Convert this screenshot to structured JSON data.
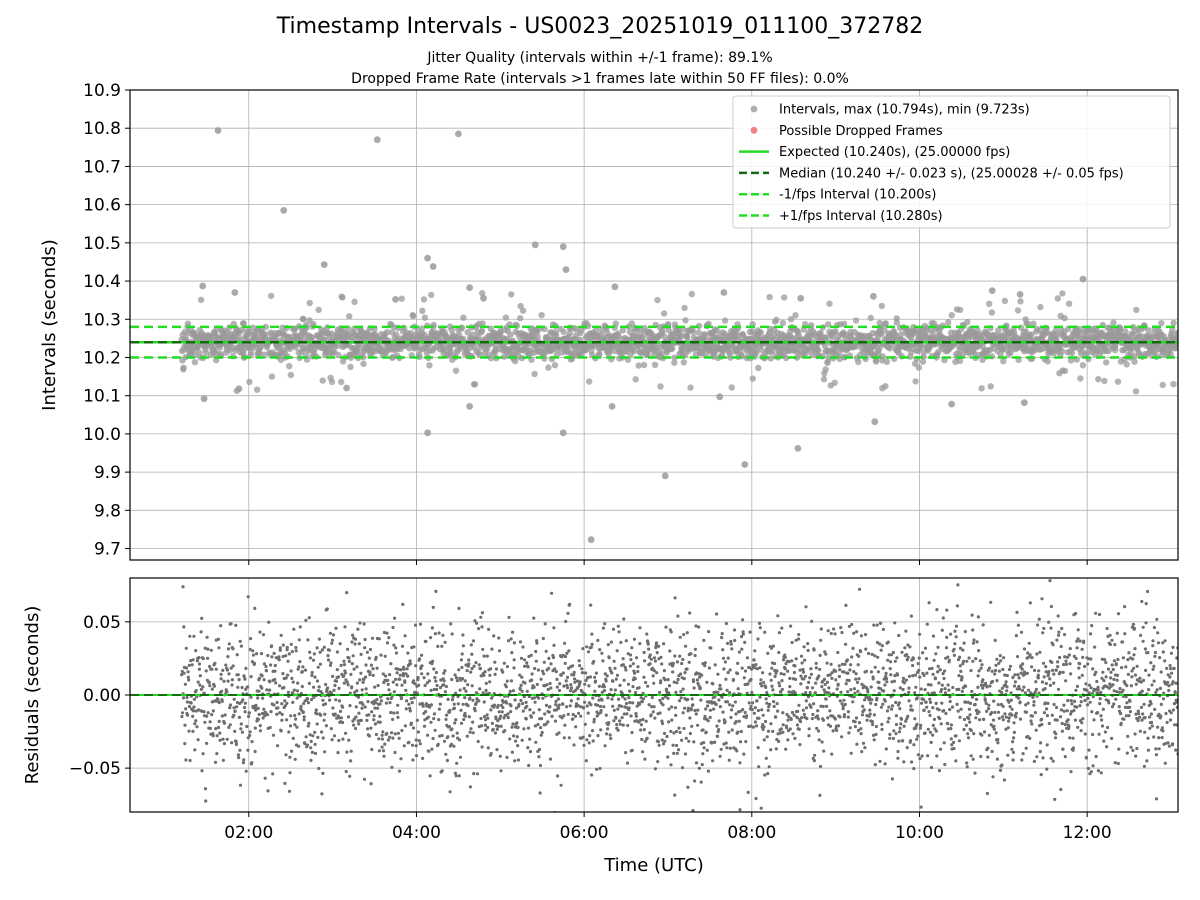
{
  "chart_data": [
    {
      "type": "scatter",
      "title": "Timestamp Intervals - US0023_20251019_011100_372782",
      "subtitle_lines": [
        "Jitter Quality (intervals within +/-1 frame): 89.1%",
        "Dropped Frame Rate (intervals >1 frames late within 50 FF files): 0.0%"
      ],
      "ylabel": "Intervals (seconds)",
      "xlim": [
        "00:35",
        "13:05"
      ],
      "ylim": [
        9.67,
        10.9
      ],
      "yticks": [
        "10.9",
        "10.8",
        "10.7",
        "10.6",
        "10.5",
        "10.4",
        "10.3",
        "10.2",
        "10.1",
        "10.0",
        "9.9",
        "9.8",
        "9.7"
      ],
      "grid": true,
      "legend_position": "top-right",
      "legend": [
        {
          "label": "Intervals, max (10.794s), min (9.723s)",
          "kind": "marker",
          "color": "#a0a0a0"
        },
        {
          "label": "Possible Dropped Frames",
          "kind": "marker",
          "color": "#f06a6a"
        },
        {
          "label": "Expected (10.240s), (25.00000 fps)",
          "kind": "line",
          "color": "#22dd22"
        },
        {
          "label": "Median (10.240 +/- 0.023 s), (25.00028 +/- 0.05 fps)",
          "kind": "dash",
          "color": "#156b15"
        },
        {
          "label": "-1/fps Interval (10.200s)",
          "kind": "dash",
          "color": "#22dd22"
        },
        {
          "label": "+1/fps Interval (10.280s)",
          "kind": "dash",
          "color": "#22dd22"
        }
      ],
      "horizontal_lines": {
        "expected": 10.24,
        "median": 10.24,
        "lower": 10.2,
        "upper": 10.28
      },
      "time_range": [
        "01:12",
        "13:05"
      ],
      "core_spread_sd": 0.023,
      "outliers": [
        {
          "t": "01:38",
          "y": 10.794
        },
        {
          "t": "02:25",
          "y": 10.585
        },
        {
          "t": "03:32",
          "y": 10.77
        },
        {
          "t": "04:30",
          "y": 10.785
        },
        {
          "t": "02:54",
          "y": 10.443
        },
        {
          "t": "04:08",
          "y": 10.46
        },
        {
          "t": "04:12",
          "y": 10.438
        },
        {
          "t": "05:25",
          "y": 10.495
        },
        {
          "t": "05:45",
          "y": 10.49
        },
        {
          "t": "05:47",
          "y": 10.43
        },
        {
          "t": "11:57",
          "y": 10.405
        },
        {
          "t": "01:27",
          "y": 10.387
        },
        {
          "t": "01:50",
          "y": 10.37
        },
        {
          "t": "04:38",
          "y": 10.383
        },
        {
          "t": "06:22",
          "y": 10.385
        },
        {
          "t": "07:40",
          "y": 10.37
        },
        {
          "t": "10:52",
          "y": 10.375
        },
        {
          "t": "11:12",
          "y": 10.365
        },
        {
          "t": "03:45",
          "y": 10.352
        },
        {
          "t": "04:48",
          "y": 10.355
        },
        {
          "t": "08:35",
          "y": 10.355
        },
        {
          "t": "09:27",
          "y": 10.36
        },
        {
          "t": "01:28",
          "y": 10.092
        },
        {
          "t": "01:53",
          "y": 10.118
        },
        {
          "t": "03:10",
          "y": 10.12
        },
        {
          "t": "04:38",
          "y": 10.072
        },
        {
          "t": "06:20",
          "y": 10.072
        },
        {
          "t": "07:37",
          "y": 10.097
        },
        {
          "t": "10:23",
          "y": 10.078
        },
        {
          "t": "11:15",
          "y": 10.082
        },
        {
          "t": "04:08",
          "y": 10.003
        },
        {
          "t": "05:45",
          "y": 10.003
        },
        {
          "t": "09:28",
          "y": 10.032
        },
        {
          "t": "08:33",
          "y": 9.962
        },
        {
          "t": "06:58",
          "y": 9.89
        },
        {
          "t": "07:55",
          "y": 9.92
        },
        {
          "t": "06:05",
          "y": 9.723
        }
      ]
    },
    {
      "type": "scatter",
      "xlabel": "Time (UTC)",
      "ylabel": "Residuals (seconds)",
      "xticks": [
        "02:00",
        "04:00",
        "06:00",
        "08:00",
        "10:00",
        "12:00"
      ],
      "xlim": [
        "00:35",
        "13:05"
      ],
      "ylim": [
        -0.08,
        0.08
      ],
      "yticks": [
        "0.05",
        "0.00",
        "−0.05"
      ],
      "grid": true,
      "zero_line": 0.0,
      "time_range": [
        "01:12",
        "13:05"
      ],
      "residual_sd": 0.025
    }
  ]
}
